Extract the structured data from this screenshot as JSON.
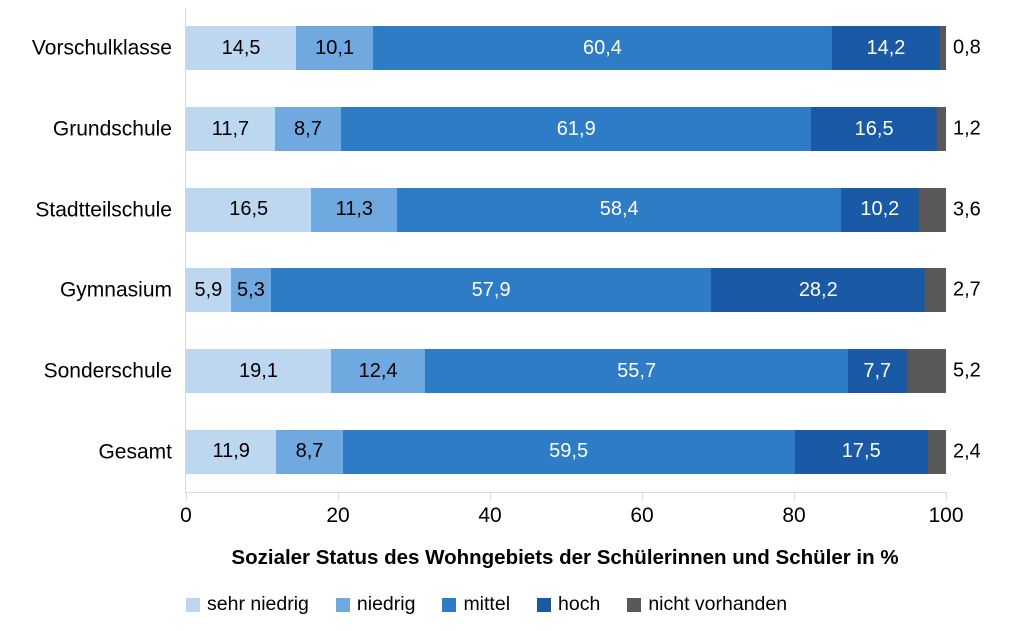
{
  "chart_data": {
    "type": "bar",
    "orientation": "horizontal",
    "stacked": true,
    "title": "",
    "xlabel": "Sozialer Status des Wohngebiets der Schülerinnen und Schüler in %",
    "ylabel": "",
    "xlim": [
      0,
      100
    ],
    "x_ticks": [
      "0",
      "20",
      "40",
      "60",
      "80",
      "100"
    ],
    "grid": false,
    "legend_position": "bottom",
    "axis_line_color": "#d9d9d9",
    "categories": [
      "Vorschulklasse",
      "Grundschule",
      "Stadtteilschule",
      "Gymnasium",
      "Sonderschule",
      "Gesamt"
    ],
    "series": [
      {
        "name": "sehr niedrig",
        "color": "#BDD7F0",
        "label_color": "#000000",
        "label_outside": false,
        "values": [
          14.5,
          11.7,
          16.5,
          5.9,
          19.1,
          11.9
        ]
      },
      {
        "name": "niedrig",
        "color": "#70A9E0",
        "label_color": "#000000",
        "label_outside": false,
        "values": [
          10.1,
          8.7,
          11.3,
          5.3,
          12.4,
          8.7
        ]
      },
      {
        "name": "mittel",
        "color": "#2E7BC6",
        "label_color": "#FFFFFF",
        "label_outside": false,
        "values": [
          60.4,
          61.9,
          58.4,
          57.9,
          55.7,
          59.5
        ]
      },
      {
        "name": "hoch",
        "color": "#1959A5",
        "label_color": "#FFFFFF",
        "label_outside": false,
        "values": [
          14.2,
          16.5,
          10.2,
          28.2,
          7.7,
          17.5
        ]
      },
      {
        "name": "nicht vorhanden",
        "color": "#595959",
        "label_color": "#000000",
        "label_outside": true,
        "values": [
          0.8,
          1.2,
          3.6,
          2.7,
          5.2,
          2.4
        ]
      }
    ],
    "value_label_decimal_separator": ","
  }
}
